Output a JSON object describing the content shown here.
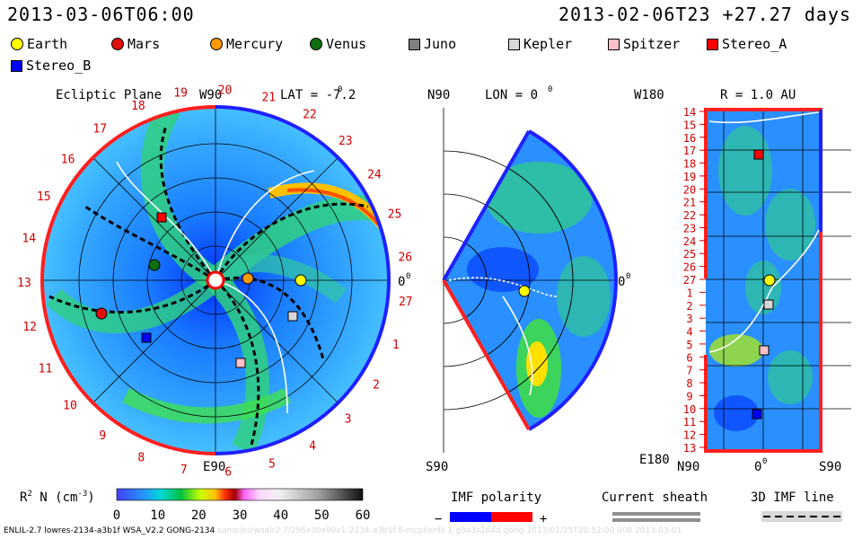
{
  "header": {
    "current_time": "2013-03-06T06:00",
    "ref_time": "2013-02-06T23  +27.27 days"
  },
  "legend": [
    {
      "name": "Earth",
      "shape": "dot",
      "color": "#ffff00"
    },
    {
      "name": "Mars",
      "shape": "dot",
      "color": "#e01010"
    },
    {
      "name": "Mercury",
      "shape": "dot",
      "color": "#ff9900"
    },
    {
      "name": "Venus",
      "shape": "dot",
      "color": "#107010"
    },
    {
      "name": "Juno",
      "shape": "square",
      "color": "#808080"
    },
    {
      "name": "Kepler",
      "shape": "square",
      "color": "#d8d8d8"
    },
    {
      "name": "Spitzer",
      "shape": "square",
      "color": "#ffc0cb"
    },
    {
      "name": "Stereo_A",
      "shape": "square",
      "color": "#ff0000"
    },
    {
      "name": "Stereo_B",
      "shape": "square",
      "color": "#0000ff"
    }
  ],
  "ecliptic": {
    "title": "Ecliptic Plane",
    "w90": "W90",
    "lat": "LAT = -7.2",
    "deg": "0",
    "e90": "E90",
    "zero": "0",
    "zero_deg": "0",
    "carrington": [
      "19",
      "20",
      "21",
      "22",
      "23",
      "24",
      "25",
      "26",
      "27",
      "1",
      "2",
      "3",
      "4",
      "5",
      "6",
      "7",
      "8",
      "9",
      "10",
      "11",
      "12",
      "13",
      "14",
      "15",
      "16",
      "17",
      "18"
    ]
  },
  "meridional": {
    "n90": "N90",
    "lon": "LON = 0",
    "deg": "0",
    "s90": "S90",
    "zero": "0",
    "zero_deg": "0"
  },
  "radial": {
    "w180": "W180",
    "r": "R = 1.0 AU",
    "e180": "E180",
    "n90": "N90",
    "zero": "0",
    "deg": "0",
    "s90": "S90",
    "rows": [
      "14",
      "15",
      "16",
      "17",
      "18",
      "19",
      "20",
      "21",
      "22",
      "23",
      "24",
      "25",
      "26",
      "27",
      "1",
      "2",
      "3",
      "4",
      "5",
      "6",
      "7",
      "8",
      "9",
      "10",
      "11",
      "12",
      "13"
    ]
  },
  "colorbar": {
    "label": "R",
    "sup": "2",
    "label2": " N (cm",
    "sup2": "-3",
    "label3": ")",
    "ticks": [
      "0",
      "10",
      "20",
      "30",
      "40",
      "50",
      "60"
    ]
  },
  "imf": {
    "title": "IMF polarity",
    "minus": "−",
    "plus": "+"
  },
  "sheath": {
    "title": "Current sheath"
  },
  "imf3d": {
    "title": "3D IMF line"
  },
  "footer": {
    "left": "ENLIL-2.7 lowres-2134-a3b1f WSA_V2.2 GONG-2134",
    "faint": "samples/wsalr2.7/256x30x90x1-2134-a3b1f.8-mcpl/enlil.1-g3a3s2p4d.gong-2013/01/25T20:52:00.000",
    "right": "2013-03-01"
  }
}
